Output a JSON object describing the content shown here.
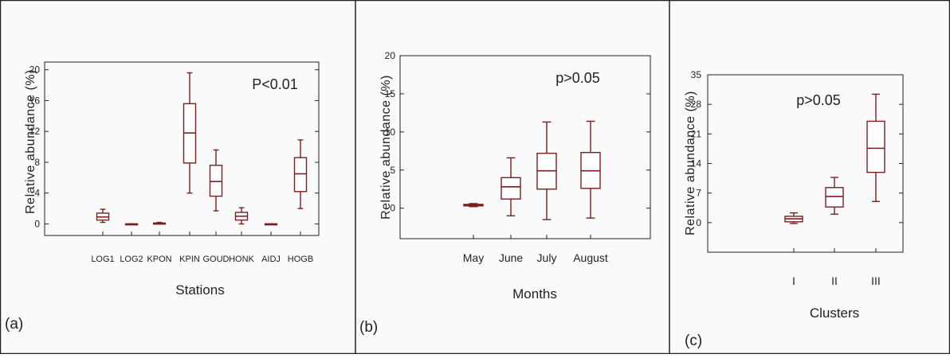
{
  "colors": {
    "box": "#7a1f1f",
    "frame": "#222222",
    "background": "#fafafa"
  },
  "chart_data": [
    {
      "type": "box",
      "panel_label": "(a)",
      "annotation": "P<0.01",
      "xlabel": "Stations",
      "ylabel": "Relative abundance (%)",
      "ylim": [
        -1.5,
        21
      ],
      "yticks": [
        0,
        4,
        8,
        12,
        16,
        20
      ],
      "ytick_labels": [
        "0",
        "4",
        "8",
        "12",
        "16",
        "20"
      ],
      "categories": [
        "LOG1",
        "LOG2",
        "KPON",
        "KPIN",
        "GOUD",
        "HONK",
        "AIDJ",
        "HOGB"
      ],
      "boxes": [
        {
          "min": 0.2,
          "q1": 0.5,
          "median": 0.9,
          "q3": 1.4,
          "max": 1.9
        },
        {
          "min": 0,
          "q1": 0,
          "median": 0,
          "q3": 0,
          "max": 0
        },
        {
          "min": 0,
          "q1": 0,
          "median": 0.1,
          "q3": 0.1,
          "max": 0.2
        },
        {
          "min": 4.0,
          "q1": 7.9,
          "median": 11.8,
          "q3": 15.6,
          "max": 19.6
        },
        {
          "min": 1.7,
          "q1": 3.6,
          "median": 5.5,
          "q3": 7.6,
          "max": 9.6
        },
        {
          "min": 0,
          "q1": 0.5,
          "median": 1.0,
          "q3": 1.5,
          "max": 2.1
        },
        {
          "min": 0,
          "q1": 0,
          "median": 0,
          "q3": 0,
          "max": 0
        },
        {
          "min": 2.0,
          "q1": 4.2,
          "median": 6.5,
          "q3": 8.6,
          "max": 10.9
        }
      ]
    },
    {
      "type": "box",
      "panel_label": "(b)",
      "annotation": "p>0.05",
      "xlabel": "Months",
      "ylabel": "Relative abundance (%)",
      "ylim": [
        -4,
        20
      ],
      "yticks": [
        0,
        5,
        10,
        15,
        20
      ],
      "ytick_labels": [
        "0",
        "5",
        "10",
        "15",
        "20"
      ],
      "categories": [
        "May",
        "June",
        "July",
        "August"
      ],
      "boxes": [
        {
          "min": 0.2,
          "q1": 0.3,
          "median": 0.4,
          "q3": 0.5,
          "max": 0.6
        },
        {
          "min": -1.0,
          "q1": 1.2,
          "median": 2.8,
          "q3": 4.0,
          "max": 6.6
        },
        {
          "min": -1.5,
          "q1": 2.5,
          "median": 4.9,
          "q3": 7.2,
          "max": 11.3
        },
        {
          "min": -1.3,
          "q1": 2.6,
          "median": 4.9,
          "q3": 7.3,
          "max": 11.4
        }
      ]
    },
    {
      "type": "box",
      "panel_label": "(c)",
      "annotation": "p>0.05",
      "xlabel": "Clusters",
      "ylabel": "Relative abundance (%)",
      "ylim": [
        -7,
        35
      ],
      "yticks": [
        0,
        7,
        14,
        21,
        28,
        35
      ],
      "ytick_labels": [
        "0",
        "7",
        "14",
        "21",
        "28",
        "35"
      ],
      "categories": [
        "I",
        "II",
        "III"
      ],
      "boxes": [
        {
          "min": -0.2,
          "q1": 0.2,
          "median": 0.9,
          "q3": 1.5,
          "max": 2.3
        },
        {
          "min": 2.0,
          "q1": 3.7,
          "median": 6.2,
          "q3": 8.3,
          "max": 10.7
        },
        {
          "min": 5.0,
          "q1": 11.9,
          "median": 17.6,
          "q3": 24.0,
          "max": 30.4
        }
      ]
    }
  ]
}
